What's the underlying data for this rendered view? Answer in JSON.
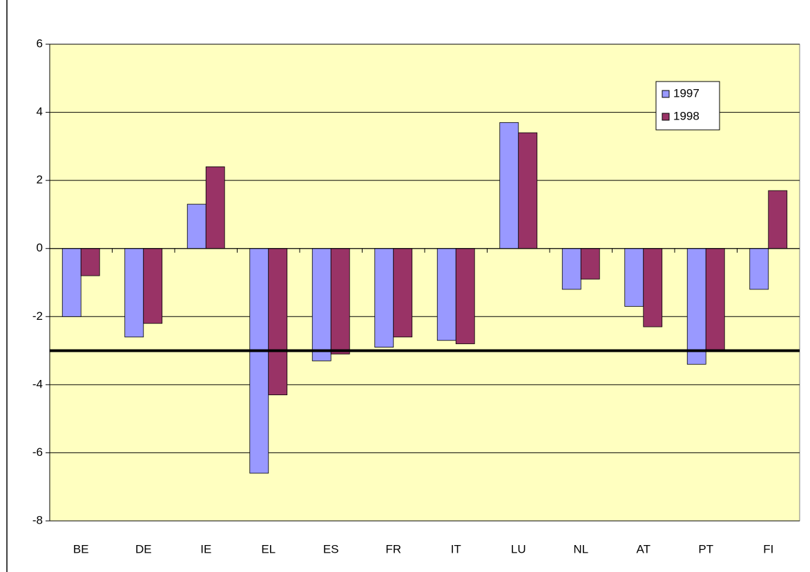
{
  "chart_data": {
    "type": "bar",
    "categories": [
      "BE",
      "DE",
      "IE",
      "EL",
      "ES",
      "FR",
      "IT",
      "LU",
      "NL",
      "AT",
      "PT",
      "FI"
    ],
    "series": [
      {
        "name": "1997",
        "color": "#9999ff",
        "values": [
          -2.0,
          -2.6,
          1.3,
          -6.6,
          -3.3,
          -2.9,
          -2.7,
          3.7,
          -1.2,
          -1.7,
          -3.4,
          -1.2
        ]
      },
      {
        "name": "1998",
        "color": "#993366",
        "values": [
          -0.8,
          -2.2,
          2.4,
          -4.3,
          -3.1,
          -2.6,
          -2.8,
          3.4,
          -0.9,
          -2.3,
          -3.0,
          1.7
        ]
      }
    ],
    "ylim": [
      -8,
      6
    ],
    "yticks": [
      -8,
      -6,
      -4,
      -2,
      0,
      2,
      4,
      6
    ],
    "grid": true,
    "hline": -3,
    "legend": "top-right",
    "background": "#ffffc0"
  }
}
